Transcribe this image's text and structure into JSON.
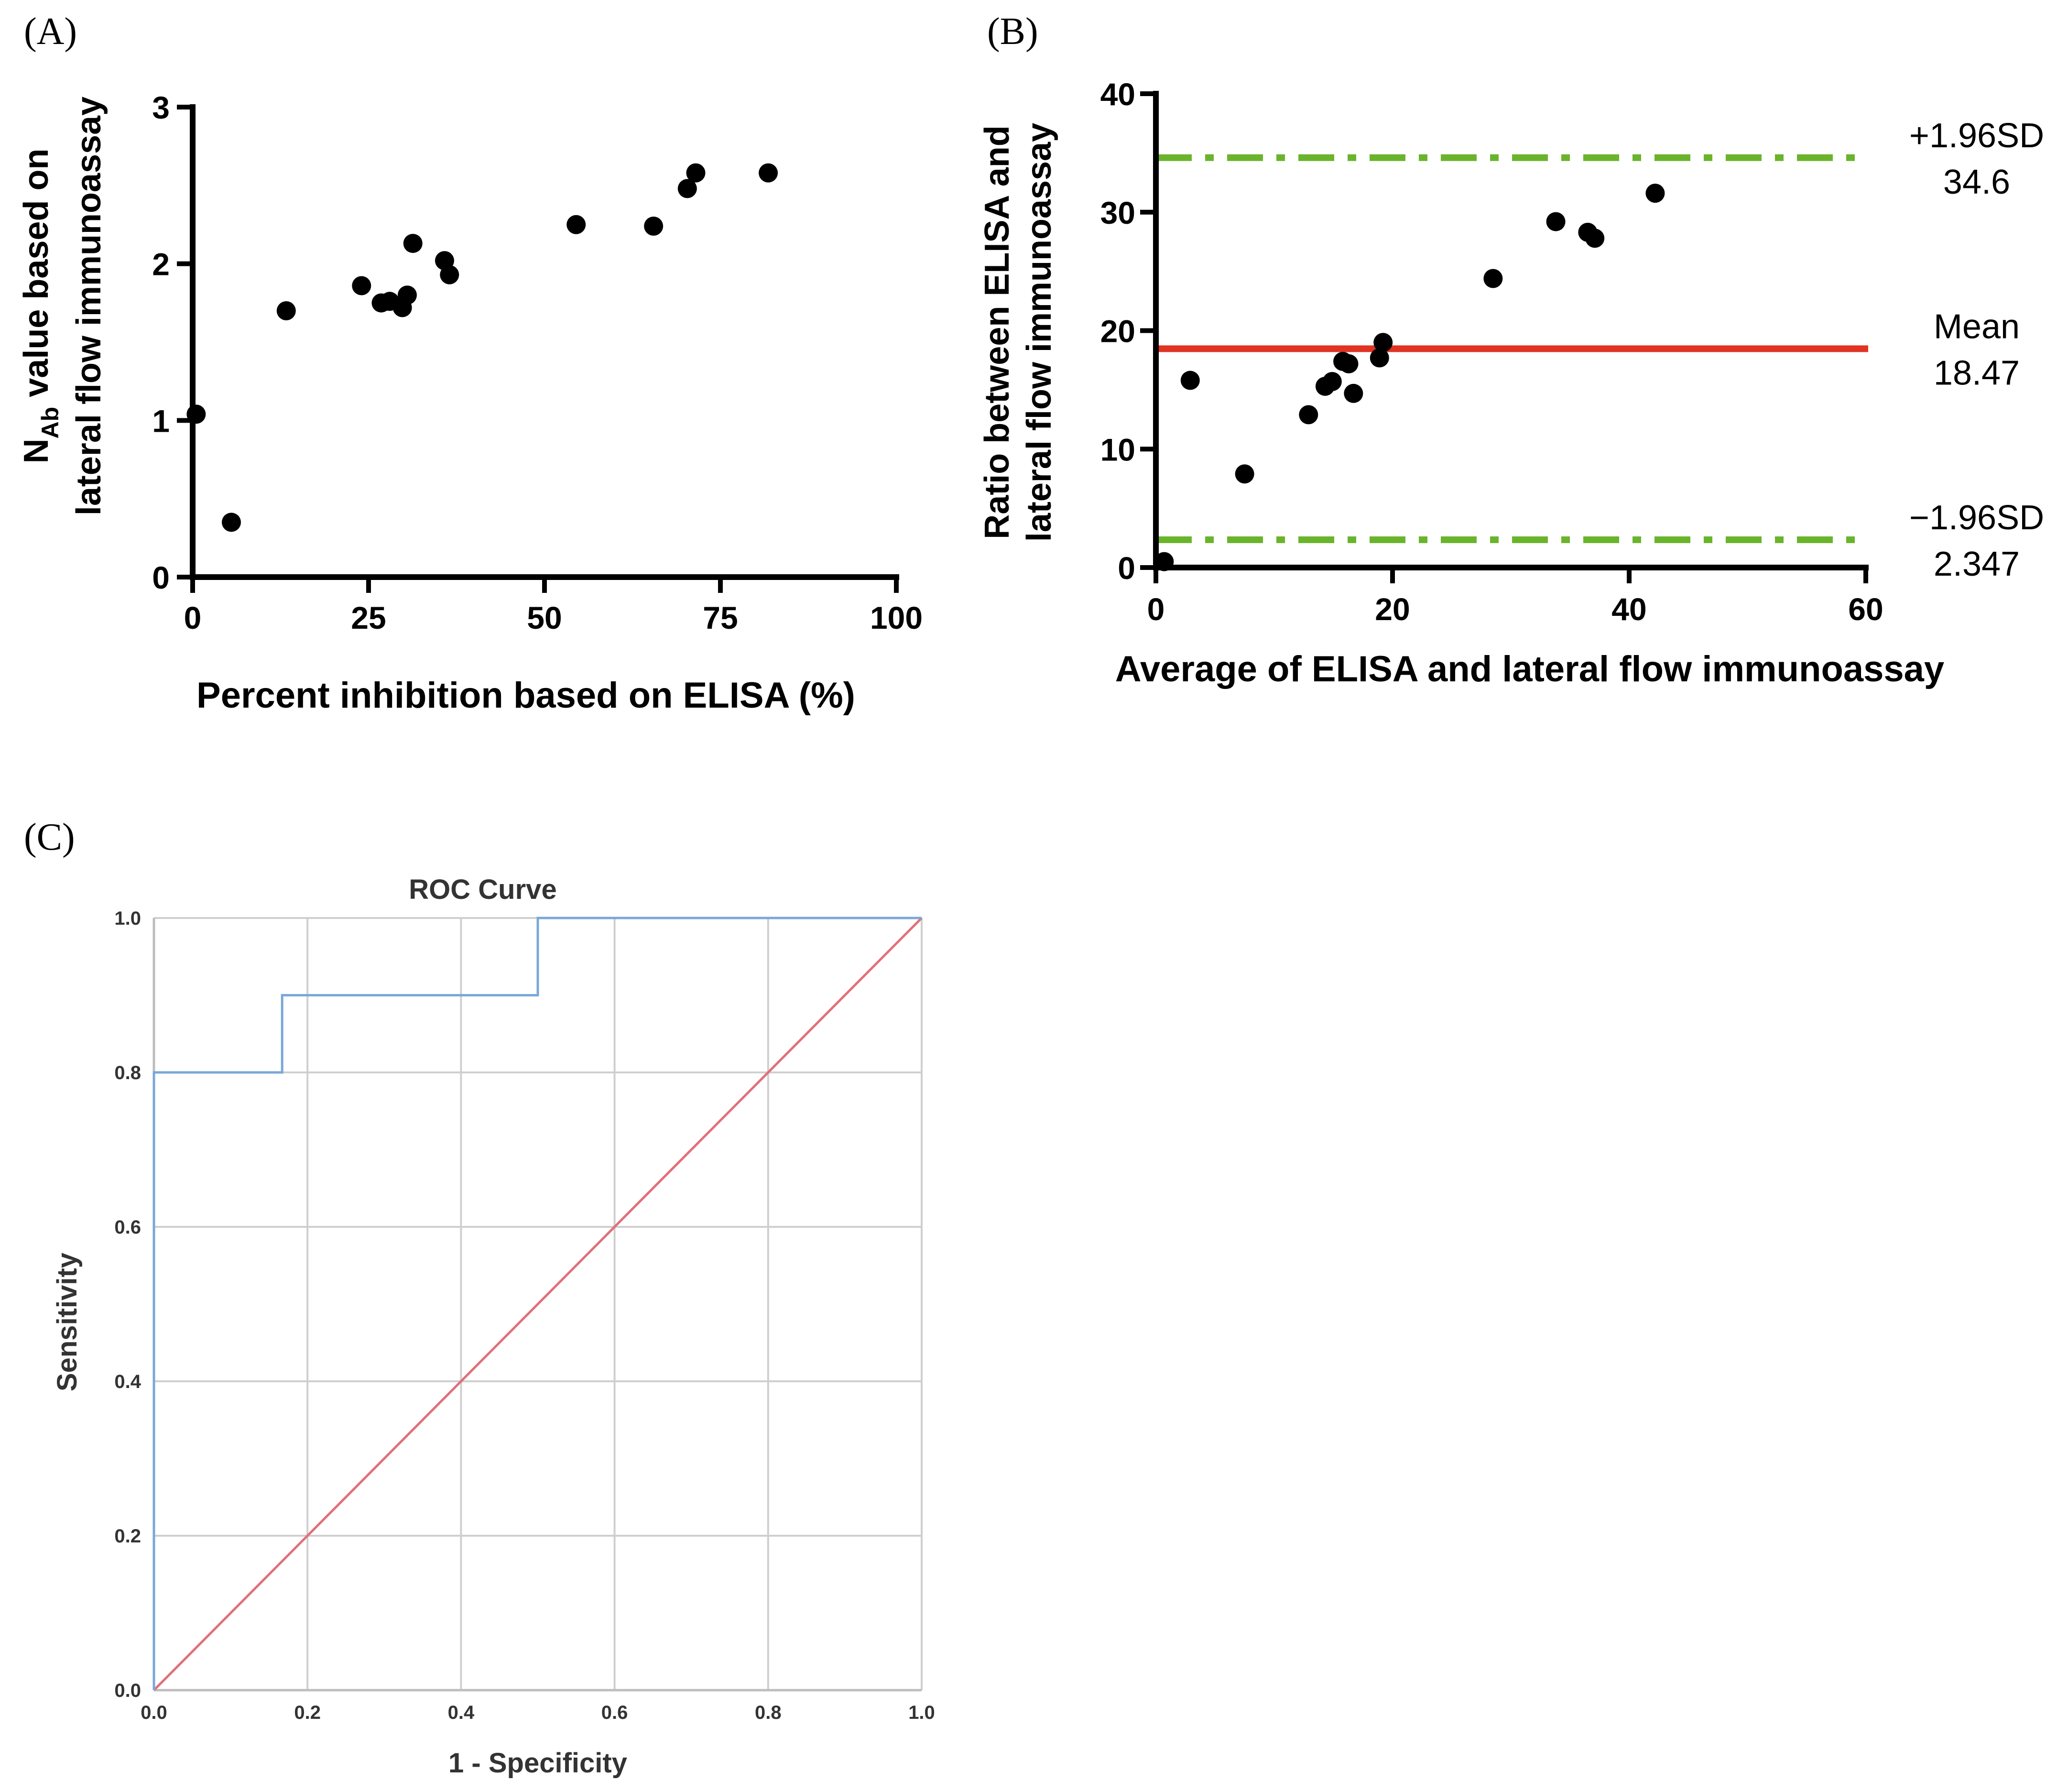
{
  "colors": {
    "axis": "#000000",
    "points": "#000000",
    "sd_lines": "#6ab42c",
    "mean_line": "#e03322",
    "roc_curve": "#7aa7d8",
    "roc_reference": "#e0707a",
    "roc_grid": "#cfcfcf",
    "roc_axis": "#bdbdbd"
  },
  "chart_data": [
    {
      "panel_label": "(A)",
      "type": "scatter",
      "title": "",
      "xlabel": "Percent inhibition based on ELISA (%)",
      "ylabel": {
        "line1_prefix": "N",
        "line1_subscript": "Ab",
        "line1_suffix": " value based on",
        "line2": "lateral flow immunoassay"
      },
      "xlim": [
        0,
        100
      ],
      "ylim": [
        0,
        3
      ],
      "xticks": [
        0,
        25,
        50,
        75,
        100
      ],
      "yticks": [
        0,
        1,
        2,
        3
      ],
      "xticklabels": [
        "0",
        "25",
        "50",
        "75",
        "100"
      ],
      "yticklabels": [
        "0",
        "1",
        "2",
        "3"
      ],
      "points": [
        [
          0.5,
          1.04
        ],
        [
          5.5,
          0.35
        ],
        [
          13.3,
          1.7
        ],
        [
          24.0,
          1.86
        ],
        [
          26.8,
          1.75
        ],
        [
          28.0,
          1.76
        ],
        [
          29.8,
          1.72
        ],
        [
          30.5,
          1.8
        ],
        [
          31.3,
          2.13
        ],
        [
          35.8,
          2.02
        ],
        [
          36.5,
          1.93
        ],
        [
          54.5,
          2.25
        ],
        [
          65.5,
          2.24
        ],
        [
          70.3,
          2.48
        ],
        [
          71.5,
          2.58
        ],
        [
          81.8,
          2.58
        ]
      ]
    },
    {
      "panel_label": "(B)",
      "type": "scatter",
      "title": "",
      "xlabel": "Average of ELISA and lateral flow immunoassay",
      "ylabel": {
        "line1": "Ratio between ELISA and",
        "line2": "lateral flow immunoassay"
      },
      "xlim": [
        0,
        60
      ],
      "ylim": [
        0,
        40
      ],
      "xticks": [
        0,
        20,
        40,
        60
      ],
      "yticks": [
        0,
        10,
        20,
        30,
        40
      ],
      "xticklabels": [
        "0",
        "20",
        "40",
        "60"
      ],
      "yticklabels": [
        "0",
        "10",
        "20",
        "30",
        "40"
      ],
      "points": [
        [
          0.7,
          0.5
        ],
        [
          2.9,
          15.8
        ],
        [
          7.5,
          7.9
        ],
        [
          12.9,
          12.9
        ],
        [
          14.3,
          15.3
        ],
        [
          14.9,
          15.7
        ],
        [
          15.8,
          17.4
        ],
        [
          16.3,
          17.2
        ],
        [
          16.7,
          14.7
        ],
        [
          18.9,
          17.7
        ],
        [
          19.2,
          19.0
        ],
        [
          28.5,
          24.4
        ],
        [
          33.8,
          29.2
        ],
        [
          36.5,
          28.3
        ],
        [
          37.1,
          27.8
        ],
        [
          42.2,
          31.6
        ]
      ],
      "reference_lines": [
        {
          "name": "upper_limit",
          "value": 34.6,
          "style": "dash-dot",
          "label_line1": "+1.96SD",
          "label_line2": "34.6"
        },
        {
          "name": "mean",
          "value": 18.47,
          "style": "solid",
          "label_line1": "Mean",
          "label_line2": "18.47"
        },
        {
          "name": "lower_limit",
          "value": 2.347,
          "style": "dash-dot",
          "label_line1": "−1.96SD",
          "label_line2": "2.347"
        }
      ]
    },
    {
      "panel_label": "(C)",
      "type": "line",
      "title": "ROC Curve",
      "xlabel": "1 - Specificity",
      "ylabel": "Sensitivity",
      "xlim": [
        0,
        1
      ],
      "ylim": [
        0,
        1
      ],
      "xticks": [
        0,
        0.2,
        0.4,
        0.6,
        0.8,
        1.0
      ],
      "yticks": [
        0,
        0.2,
        0.4,
        0.6,
        0.8,
        1.0
      ],
      "xticklabels": [
        "0.0",
        "0.2",
        "0.4",
        "0.6",
        "0.8",
        "1.0"
      ],
      "yticklabels": [
        "0.0",
        "0.2",
        "0.4",
        "0.6",
        "0.8",
        "1.0"
      ],
      "grid": true,
      "series": [
        {
          "name": "roc_curve",
          "x": [
            0,
            0,
            0.167,
            0.167,
            0.5,
            0.5,
            1.0
          ],
          "y": [
            0,
            0.8,
            0.8,
            0.9,
            0.9,
            1.0,
            1.0
          ]
        },
        {
          "name": "reference_line",
          "x": [
            0,
            1
          ],
          "y": [
            0,
            1
          ]
        }
      ]
    }
  ]
}
